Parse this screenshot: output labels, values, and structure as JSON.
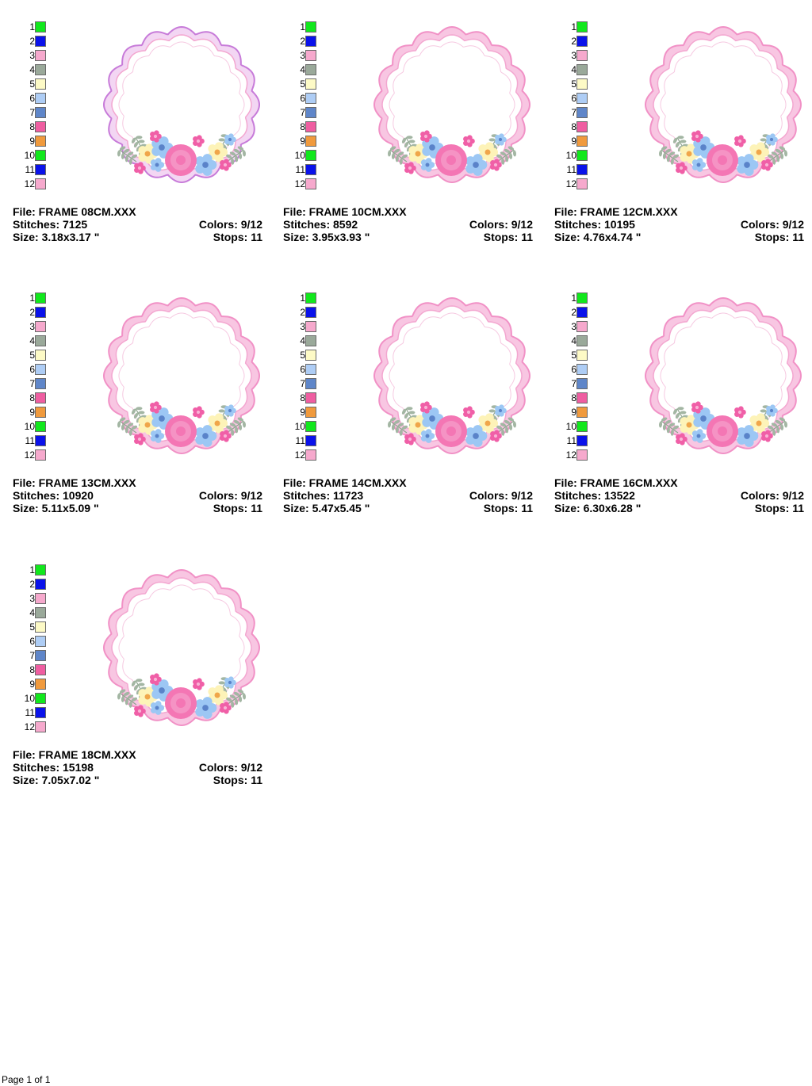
{
  "palette_labels": [
    "1",
    "2",
    "3",
    "4",
    "5",
    "6",
    "7",
    "8",
    "9",
    "10",
    "11",
    "12"
  ],
  "palette_colors": [
    "#11e81c",
    "#0a12ea",
    "#f6a9cd",
    "#9aa99a",
    "#fdfac6",
    "#aecdf5",
    "#5f86c9",
    "#ef5ea1",
    "#f09a3d",
    "#11e81c",
    "#0a12ea",
    "#f6a9cd"
  ],
  "designs": [
    {
      "file": "File: FRAME 08CM.XXX",
      "stitches": "Stitches: 7125",
      "colors": "Colors: 9/12",
      "size": "Size: 3.18x3.17 \"",
      "stops": "Stops: 11"
    },
    {
      "file": "File: FRAME 10CM.XXX",
      "stitches": "Stitches: 8592",
      "colors": "Colors: 9/12",
      "size": "Size: 3.95x3.93 \"",
      "stops": "Stops: 11"
    },
    {
      "file": "File: FRAME 12CM.XXX",
      "stitches": "Stitches: 10195",
      "colors": "Colors: 9/12",
      "size": "Size: 4.76x4.74 \"",
      "stops": "Stops: 11"
    },
    {
      "file": "File: FRAME 13CM.XXX",
      "stitches": "Stitches: 10920",
      "colors": "Colors: 9/12",
      "size": "Size: 5.11x5.09 \"",
      "stops": "Stops: 11"
    },
    {
      "file": "File: FRAME 14CM.XXX",
      "stitches": "Stitches: 11723",
      "colors": "Colors: 9/12",
      "size": "Size: 5.47x5.45 \"",
      "stops": "Stops: 11"
    },
    {
      "file": "File: FRAME 16CM.XXX",
      "stitches": "Stitches: 13522",
      "colors": "Colors: 9/12",
      "size": "Size: 6.30x6.28 \"",
      "stops": "Stops: 11"
    },
    {
      "file": "File: FRAME 18CM.XXX",
      "stitches": "Stitches: 15198",
      "colors": "Colors: 9/12",
      "size": "Size: 7.05x7.02 \"",
      "stops": "Stops: 11"
    }
  ],
  "footer": {
    "page": "Page 1 of 1"
  }
}
